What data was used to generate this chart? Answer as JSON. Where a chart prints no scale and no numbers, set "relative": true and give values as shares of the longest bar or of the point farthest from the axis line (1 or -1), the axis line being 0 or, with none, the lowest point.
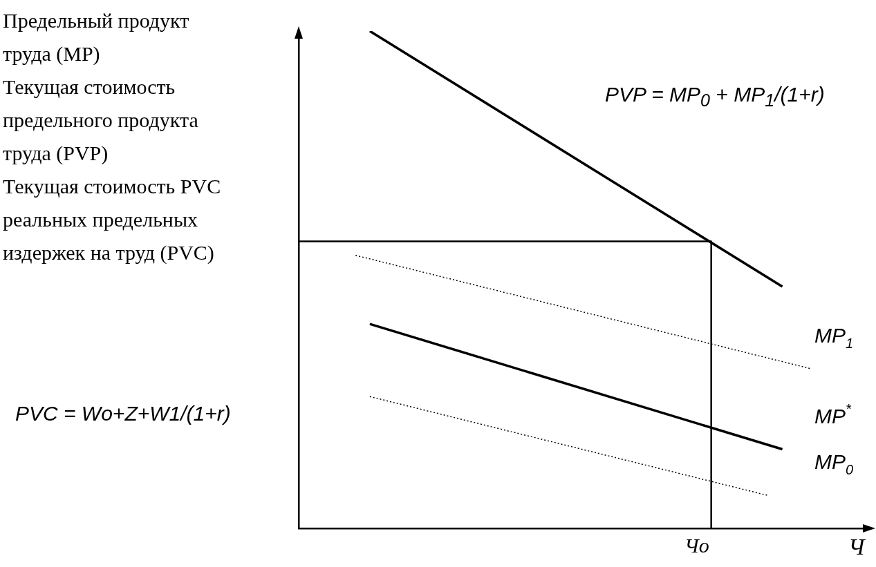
{
  "chart_data": {
    "type": "line",
    "relative": true,
    "legend": false,
    "grid": false,
    "marker": "none",
    "ylabel": "Предельный продукт\nтруда (MP)\nТекущая стоимость\nпредельного продукта\nтруда (PVP)\nТекущая стоимость PVC\nреальных предельных\nиздержек на труд (PVC)",
    "xlabel": "Ч",
    "annotations": [
      "PVP = MP$_{0}$ + MP$_{1}$/(1+r)",
      "PVC = Wo+Z+W1/(1+r)",
      "Чo"
    ],
    "categories": [
      null,
      null,
      null,
      null,
      null,
      null,
      null,
      null,
      null,
      null,
      null,
      null,
      null,
      null,
      null,
      null,
      null,
      null,
      null,
      null,
      null,
      null,
      null,
      null,
      null,
      null,
      null,
      null,
      null,
      null,
      null,
      null,
      null,
      null,
      null,
      null,
      null,
      null,
      null,
      null,
      null
    ],
    "series": [
      {
        "color": "#000000",
        "line_style": "solid",
        "values": [
          null,
          null,
          null,
          null,
          null,
          1,
          null,
          null,
          null,
          null,
          null,
          null,
          null,
          null,
          null,
          null,
          null,
          null,
          null,
          null,
          null,
          null,
          null,
          null,
          null,
          null,
          null,
          null,
          null,
          null,
          null,
          null,
          null,
          null,
          0.486,
          null,
          null,
          null,
          null,
          null,
          null
        ]
      },
      {
        "name": "MP$_{1}$",
        "color": "#000000",
        "line_style": "dotted",
        "values": [
          null,
          null,
          null,
          null,
          0.549,
          null,
          null,
          null,
          null,
          null,
          null,
          null,
          null,
          null,
          null,
          null,
          null,
          null,
          null,
          null,
          null,
          null,
          null,
          null,
          null,
          null,
          null,
          null,
          null,
          null,
          null,
          null,
          null,
          null,
          null,
          null,
          0.321,
          null,
          null,
          null,
          null
        ]
      },
      {
        "name": "MP$^{*}$",
        "color": "#000000",
        "line_style": "solid",
        "values": [
          null,
          null,
          null,
          null,
          null,
          0.411,
          null,
          null,
          null,
          null,
          null,
          null,
          null,
          null,
          null,
          null,
          null,
          null,
          null,
          null,
          null,
          null,
          null,
          null,
          null,
          null,
          null,
          null,
          null,
          null,
          null,
          null,
          null,
          null,
          0.159,
          null,
          null,
          null,
          null,
          null,
          null
        ]
      },
      {
        "name": "MP$_{0}$",
        "color": "#000000",
        "line_style": "dotted",
        "values": [
          null,
          null,
          null,
          null,
          null,
          0.265,
          null,
          null,
          null,
          null,
          null,
          null,
          null,
          null,
          null,
          null,
          null,
          null,
          null,
          null,
          null,
          null,
          null,
          null,
          null,
          null,
          null,
          null,
          null,
          null,
          null,
          null,
          null,
          0.066,
          null,
          null,
          null,
          null,
          null,
          null,
          null
        ]
      },
      {
        "type": "step",
        "color": "#000000",
        "line_style": "solid",
        "values": [
          0.577,
          null,
          null,
          null,
          null,
          null,
          null,
          null,
          null,
          null,
          null,
          null,
          null,
          null,
          null,
          null,
          null,
          null,
          null,
          null,
          null,
          null,
          null,
          null,
          null,
          null,
          null,
          null,
          0.577,
          0,
          null,
          null,
          null,
          null,
          null,
          null,
          null,
          null,
          null,
          null,
          null
        ]
      }
    ]
  }
}
